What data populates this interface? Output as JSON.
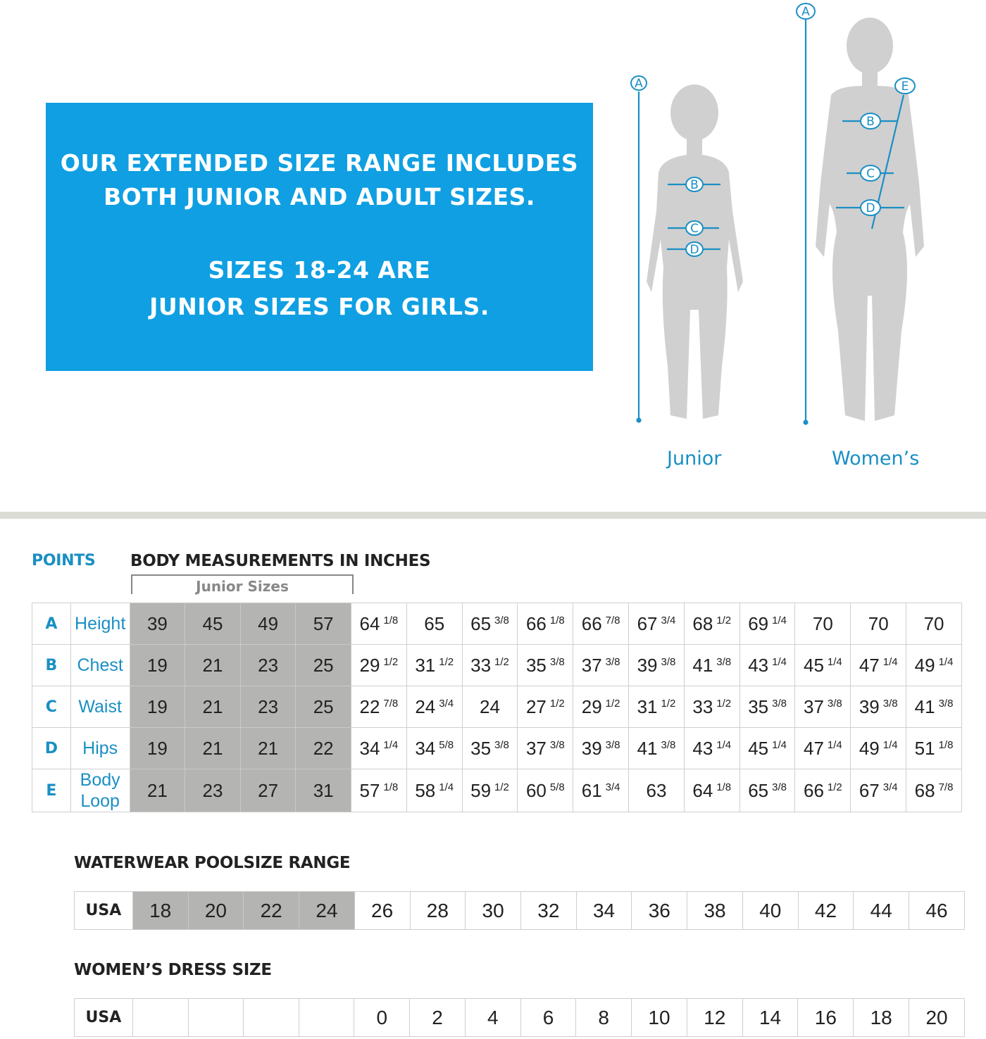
{
  "banner": {
    "line1": "OUR EXTENDED SIZE RANGE INCLUDES",
    "line2": "BOTH JUNIOR AND ADULT SIZES.",
    "line3": "SIZES 18-24 ARE",
    "line4": "JUNIOR SIZES FOR GIRLS.",
    "color": "#0f9fe2"
  },
  "figures": {
    "junior_label": "Junior",
    "womens_label": "Women’s",
    "junior_markers": [
      "A",
      "B",
      "C",
      "D"
    ],
    "womens_markers": [
      "A",
      "B",
      "C",
      "D",
      "E"
    ],
    "accent": "#1a8fc4"
  },
  "measurements": {
    "points_heading": "POINTS",
    "heading": "BODY MEASUREMENTS IN INCHES",
    "junior_bracket": "Junior Sizes",
    "junior_color": "#b4b4b2",
    "rows": [
      {
        "point": "A",
        "label": "Height",
        "values": [
          [
            "39",
            ""
          ],
          [
            "45",
            ""
          ],
          [
            "49",
            ""
          ],
          [
            "57",
            ""
          ],
          [
            "64",
            "1/8"
          ],
          [
            "65",
            ""
          ],
          [
            "65",
            "3/8"
          ],
          [
            "66",
            "1/8"
          ],
          [
            "66",
            "7/8"
          ],
          [
            "67",
            "3/4"
          ],
          [
            "68",
            "1/2"
          ],
          [
            "69",
            "1/4"
          ],
          [
            "70",
            ""
          ],
          [
            "70",
            ""
          ],
          [
            "70",
            ""
          ]
        ]
      },
      {
        "point": "B",
        "label": "Chest",
        "values": [
          [
            "19",
            ""
          ],
          [
            "21",
            ""
          ],
          [
            "23",
            ""
          ],
          [
            "25",
            ""
          ],
          [
            "29",
            "1/2"
          ],
          [
            "31",
            "1/2"
          ],
          [
            "33",
            "1/2"
          ],
          [
            "35",
            "3/8"
          ],
          [
            "37",
            "3/8"
          ],
          [
            "39",
            "3/8"
          ],
          [
            "41",
            "3/8"
          ],
          [
            "43",
            "1/4"
          ],
          [
            "45",
            "1/4"
          ],
          [
            "47",
            "1/4"
          ],
          [
            "49",
            "1/4"
          ]
        ]
      },
      {
        "point": "C",
        "label": "Waist",
        "values": [
          [
            "19",
            ""
          ],
          [
            "21",
            ""
          ],
          [
            "23",
            ""
          ],
          [
            "25",
            ""
          ],
          [
            "22",
            "7/8"
          ],
          [
            "24",
            "3/4"
          ],
          [
            "24",
            ""
          ],
          [
            "27",
            "1/2"
          ],
          [
            "29",
            "1/2"
          ],
          [
            "31",
            "1/2"
          ],
          [
            "33",
            "1/2"
          ],
          [
            "35",
            "3/8"
          ],
          [
            "37",
            "3/8"
          ],
          [
            "39",
            "3/8"
          ],
          [
            "41",
            "3/8"
          ]
        ]
      },
      {
        "point": "D",
        "label": "Hips",
        "values": [
          [
            "19",
            ""
          ],
          [
            "21",
            ""
          ],
          [
            "21",
            ""
          ],
          [
            "22",
            ""
          ],
          [
            "34",
            "1/4"
          ],
          [
            "34",
            "5/8"
          ],
          [
            "35",
            "3/8"
          ],
          [
            "37",
            "3/8"
          ],
          [
            "39",
            "3/8"
          ],
          [
            "41",
            "3/8"
          ],
          [
            "43",
            "1/4"
          ],
          [
            "45",
            "1/4"
          ],
          [
            "47",
            "1/4"
          ],
          [
            "49",
            "1/4"
          ],
          [
            "51",
            "1/8"
          ]
        ]
      },
      {
        "point": "E",
        "label": "Body Loop",
        "values": [
          [
            "21",
            ""
          ],
          [
            "23",
            ""
          ],
          [
            "27",
            ""
          ],
          [
            "31",
            ""
          ],
          [
            "57",
            "1/8"
          ],
          [
            "58",
            "1/4"
          ],
          [
            "59",
            "1/2"
          ],
          [
            "60",
            "5/8"
          ],
          [
            "61",
            "3/4"
          ],
          [
            "63",
            ""
          ],
          [
            "64",
            "1/8"
          ],
          [
            "65",
            "3/8"
          ],
          [
            "66",
            "1/2"
          ],
          [
            "67",
            "3/4"
          ],
          [
            "68",
            "7/8"
          ]
        ]
      }
    ]
  },
  "poolsize": {
    "heading": "WATERWEAR POOLSIZE RANGE",
    "row_label": "USA",
    "values": [
      "18",
      "20",
      "22",
      "24",
      "26",
      "28",
      "30",
      "32",
      "34",
      "36",
      "38",
      "40",
      "42",
      "44",
      "46"
    ]
  },
  "dress": {
    "heading": "WOMEN’S DRESS SIZE",
    "row_label": "USA",
    "values": [
      "",
      "",
      "",
      "",
      "0",
      "2",
      "4",
      "6",
      "8",
      "10",
      "12",
      "14",
      "16",
      "18",
      "20"
    ]
  }
}
